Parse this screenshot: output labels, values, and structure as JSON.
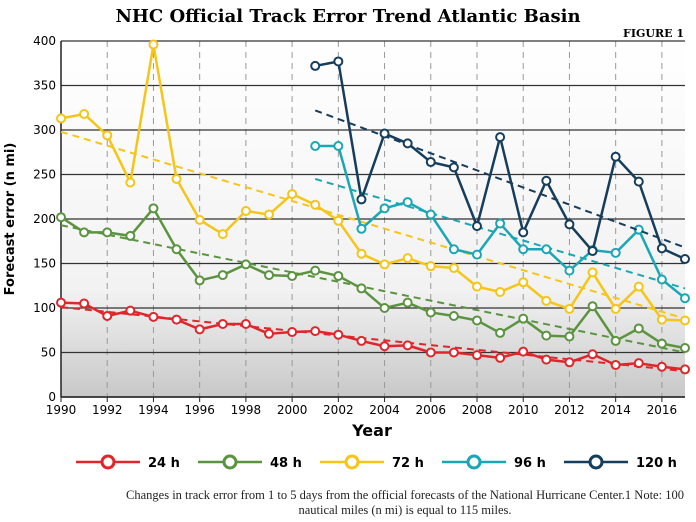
{
  "chart_data": {
    "type": "line",
    "title": "NHC Official Track Error Trend Atlantic Basin",
    "figure_label": "FIGURE 1",
    "xlabel": "Year",
    "ylabel": "Forecast error (n mi)",
    "xlim": [
      1990,
      2017
    ],
    "ylim": [
      0,
      400
    ],
    "xticks": [
      1990,
      1992,
      1994,
      1996,
      1998,
      2000,
      2002,
      2004,
      2006,
      2008,
      2010,
      2012,
      2014,
      2016
    ],
    "yticks": [
      0,
      50,
      100,
      150,
      200,
      250,
      300,
      350,
      400
    ],
    "grid": true,
    "legend_position": "bottom",
    "series": [
      {
        "name": "24 h",
        "color": "#e0262b",
        "start": 1990,
        "values": [
          106,
          105,
          91,
          97,
          90,
          87,
          76,
          82,
          82,
          71,
          73,
          74,
          70,
          63,
          57,
          58,
          50,
          50,
          47,
          44,
          51,
          42,
          39,
          48,
          36,
          38,
          34,
          31
        ],
        "trend": [
          101,
          29
        ]
      },
      {
        "name": "48 h",
        "color": "#5b9440",
        "start": 1990,
        "values": [
          202,
          185,
          185,
          181,
          212,
          166,
          131,
          137,
          149,
          137,
          136,
          142,
          136,
          122,
          100,
          106,
          95,
          91,
          86,
          72,
          88,
          69,
          68,
          102,
          63,
          77,
          60,
          55
        ],
        "trend": [
          193,
          50
        ]
      },
      {
        "name": "72 h",
        "color": "#f5c518",
        "start": 1990,
        "values": [
          313,
          318,
          294,
          241,
          396,
          245,
          199,
          183,
          209,
          205,
          228,
          216,
          198,
          161,
          149,
          156,
          147,
          145,
          124,
          118,
          129,
          108,
          99,
          140,
          99,
          124,
          87,
          86
        ],
        "trend": [
          298,
          88
        ]
      },
      {
        "name": "96 h",
        "color": "#1aa7b5",
        "start": 2001,
        "values": [
          282,
          282,
          189,
          212,
          219,
          205,
          166,
          160,
          195,
          166,
          166,
          142,
          165,
          162,
          188,
          132,
          111
        ],
        "trend": [
          245,
          122
        ]
      },
      {
        "name": "120 h",
        "color": "#163d5c",
        "start": 2001,
        "values": [
          372,
          377,
          222,
          296,
          285,
          264,
          258,
          192,
          292,
          185,
          243,
          194,
          164,
          270,
          242,
          167,
          155
        ],
        "trend": [
          322,
          168
        ]
      }
    ]
  },
  "caption": "Changes in track error from 1 to 5 days from the official forecasts of the National Hurricane Center.1 Note: 100 nautical miles (n mi) is equal to 115 miles."
}
